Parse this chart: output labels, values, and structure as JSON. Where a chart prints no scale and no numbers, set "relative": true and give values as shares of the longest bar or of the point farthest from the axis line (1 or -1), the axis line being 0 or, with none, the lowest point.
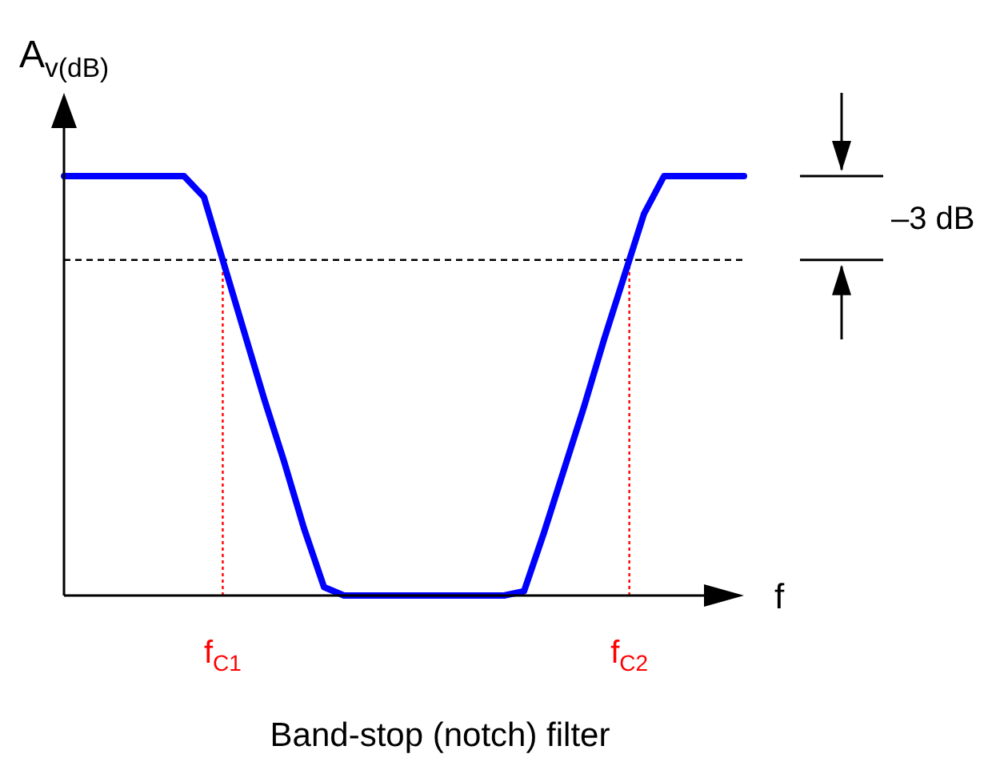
{
  "chart_data": {
    "type": "line",
    "relative": true,
    "title": "Band-stop (notch) filter",
    "xlabel": "f",
    "ylabel": "A$_{v(dB)}$",
    "categories": [
      null,
      null,
      null,
      null,
      null,
      null,
      null,
      null,
      null,
      null,
      null,
      null,
      null,
      null,
      null,
      null,
      null,
      null,
      null,
      null,
      null,
      null,
      null,
      null,
      null,
      null,
      null,
      null,
      null,
      null,
      null,
      null,
      null,
      null,
      null
    ],
    "series": [
      {
        "color": "#0000ff",
        "values": [
          1,
          1,
          1,
          1,
          1,
          1,
          1,
          0.95,
          0.79,
          0.63,
          0.47,
          0.32,
          0.16,
          0.02,
          0,
          0,
          0,
          0,
          0,
          0,
          0,
          0,
          0,
          0.01,
          0.15,
          0.3,
          0.45,
          0.61,
          0.76,
          0.91,
          1,
          1,
          1,
          1,
          1
        ]
      }
    ],
    "ref_lines": [
      {
        "axis": "y",
        "value": 0.8,
        "color": "#000000",
        "line_style": "dashed"
      }
    ],
    "annotations": [
      "–3 dB",
      "f$_{C1}$",
      "f$_{C2}$"
    ],
    "line_style": "solid"
  }
}
